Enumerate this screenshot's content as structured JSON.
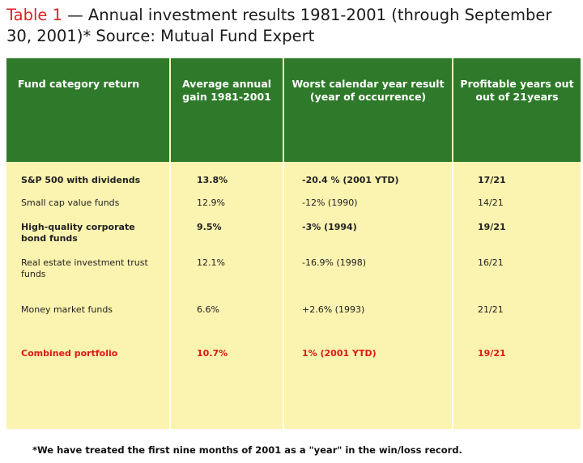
{
  "title": {
    "label": "Table 1",
    "text": " — Annual investment results 1981-2001 (through September 30, 2001)*  Source: Mutual Fund Expert"
  },
  "table": {
    "headers": [
      "Fund category return",
      "Average annual gain 1981-2001",
      "Worst calendar year result (year of occurrence)",
      "Profitable years out out of 21years"
    ],
    "rows": [
      {
        "category": "S&P 500 with dividends",
        "gain": "13.8%",
        "worst": "-20.4 % (2001 YTD)",
        "profitable": "17/21"
      },
      {
        "category": "Small cap value funds",
        "gain": "12.9%",
        "worst": "-12% (1990)",
        "profitable": "14/21"
      },
      {
        "category": "High-quality corporate bond funds",
        "gain": "9.5%",
        "worst": "-3% (1994)",
        "profitable": "19/21"
      },
      {
        "category": "Real estate investment trust funds",
        "gain": "12.1%",
        "worst": "-16.9% (1998)",
        "profitable": "16/21"
      },
      {
        "category": "Money market funds",
        "gain": "6.6%",
        "worst": "+2.6% (1993)",
        "profitable": "21/21"
      },
      {
        "category": "Combined portfolio",
        "gain": "10.7%",
        "worst": "1% (2001 YTD)",
        "profitable": "19/21"
      }
    ]
  },
  "footnote": "*We have treated the first nine months of 2001 as a \"year\" in the win/loss record.",
  "colors": {
    "header_green": "#2f7a2a",
    "body_yellow": "#fbf3b0",
    "accent_red": "#e01818"
  }
}
